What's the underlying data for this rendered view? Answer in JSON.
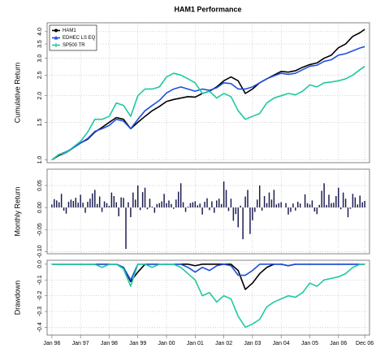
{
  "chart_data": [
    {
      "type": "line",
      "title": "HAM1 Performance",
      "ylabel": "Cumulative Return",
      "log_y": true,
      "grid": true,
      "legend": "topleft",
      "x": [
        "1996-01",
        "1996-04",
        "1996-07",
        "1996-10",
        "1997-01",
        "1997-04",
        "1997-07",
        "1997-10",
        "1998-01",
        "1998-04",
        "1998-07",
        "1998-10",
        "1999-01",
        "1999-04",
        "1999-07",
        "1999-10",
        "2000-01",
        "2000-04",
        "2000-07",
        "2000-10",
        "2001-01",
        "2001-04",
        "2001-07",
        "2001-10",
        "2002-01",
        "2002-04",
        "2002-07",
        "2002-10",
        "2003-01",
        "2003-04",
        "2003-07",
        "2003-10",
        "2004-01",
        "2004-04",
        "2004-07",
        "2004-10",
        "2005-01",
        "2005-04",
        "2005-07",
        "2005-10",
        "2006-01",
        "2006-04",
        "2006-07",
        "2006-10",
        "2006-12"
      ],
      "xlim": [
        "1995-11",
        "2007-02"
      ],
      "ylim": [
        0.97,
        4.4
      ],
      "yticks": [
        {
          "value": 1,
          "label": "1.0"
        },
        1.5,
        {
          "value": 2,
          "label": "2.0"
        },
        2.5,
        {
          "value": 3,
          "label": "3.0"
        },
        3.5,
        {
          "value": 4,
          "label": "4.0"
        }
      ],
      "series": [
        {
          "name": "HAM1",
          "color": "#000000",
          "marker": "circle",
          "values": [
            1.0,
            1.05,
            1.08,
            1.14,
            1.2,
            1.25,
            1.35,
            1.42,
            1.5,
            1.58,
            1.55,
            1.4,
            1.5,
            1.6,
            1.7,
            1.78,
            1.88,
            1.92,
            1.95,
            1.98,
            1.97,
            2.05,
            2.1,
            2.2,
            2.35,
            2.45,
            2.35,
            2.05,
            2.15,
            2.3,
            2.4,
            2.5,
            2.6,
            2.58,
            2.62,
            2.72,
            2.8,
            2.85,
            3.0,
            3.1,
            3.36,
            3.5,
            3.8,
            3.95,
            4.1
          ]
        },
        {
          "name": "EDHEC LS EQ",
          "color": "#1f4fe0",
          "marker": "triangle",
          "values": [
            1.0,
            1.06,
            1.09,
            1.14,
            1.2,
            1.26,
            1.36,
            1.4,
            1.45,
            1.55,
            1.52,
            1.4,
            1.55,
            1.7,
            1.8,
            1.9,
            2.06,
            2.15,
            2.2,
            2.15,
            2.1,
            2.15,
            2.12,
            2.18,
            2.3,
            2.28,
            2.15,
            2.15,
            2.2,
            2.3,
            2.4,
            2.48,
            2.55,
            2.52,
            2.55,
            2.65,
            2.75,
            2.78,
            2.9,
            2.95,
            3.1,
            3.15,
            3.25,
            3.35,
            3.4
          ]
        },
        {
          "name": "SP500 TR",
          "color": "#1fc9a0",
          "marker": "plus",
          "values": [
            1.0,
            1.06,
            1.08,
            1.15,
            1.22,
            1.35,
            1.55,
            1.55,
            1.6,
            1.85,
            1.8,
            1.6,
            2.0,
            2.15,
            2.15,
            2.2,
            2.45,
            2.55,
            2.5,
            2.4,
            2.3,
            2.05,
            2.1,
            1.95,
            2.05,
            1.98,
            1.7,
            1.55,
            1.6,
            1.65,
            1.85,
            1.95,
            2.0,
            2.05,
            2.02,
            2.1,
            2.25,
            2.2,
            2.3,
            2.32,
            2.35,
            2.4,
            2.5,
            2.65,
            2.75
          ]
        }
      ]
    },
    {
      "type": "bar",
      "ylabel": "Monthly Return",
      "grid": true,
      "color": "#1a1a4e",
      "x": [
        "1996-01",
        "1996-02",
        "1996-03",
        "1996-04",
        "1996-05",
        "1996-06",
        "1996-07",
        "1996-08",
        "1996-09",
        "1996-10",
        "1996-11",
        "1996-12",
        "1997-01",
        "1997-02",
        "1997-03",
        "1997-04",
        "1997-05",
        "1997-06",
        "1997-07",
        "1997-08",
        "1997-09",
        "1997-10",
        "1997-11",
        "1997-12",
        "1998-01",
        "1998-02",
        "1998-03",
        "1998-04",
        "1998-05",
        "1998-06",
        "1998-07",
        "1998-08",
        "1998-09",
        "1998-10",
        "1998-11",
        "1998-12",
        "1999-01",
        "1999-02",
        "1999-03",
        "1999-04",
        "1999-05",
        "1999-06",
        "1999-07",
        "1999-08",
        "1999-09",
        "1999-10",
        "1999-11",
        "1999-12",
        "2000-01",
        "2000-02",
        "2000-03",
        "2000-04",
        "2000-05",
        "2000-06",
        "2000-07",
        "2000-08",
        "2000-09",
        "2000-10",
        "2000-11",
        "2000-12",
        "2001-01",
        "2001-02",
        "2001-03",
        "2001-04",
        "2001-05",
        "2001-06",
        "2001-07",
        "2001-08",
        "2001-09",
        "2001-10",
        "2001-11",
        "2001-12",
        "2002-01",
        "2002-02",
        "2002-03",
        "2002-04",
        "2002-05",
        "2002-06",
        "2002-07",
        "2002-08",
        "2002-09",
        "2002-10",
        "2002-11",
        "2002-12",
        "2003-01",
        "2003-02",
        "2003-03",
        "2003-04",
        "2003-05",
        "2003-06",
        "2003-07",
        "2003-08",
        "2003-09",
        "2003-10",
        "2003-11",
        "2003-12",
        "2004-01",
        "2004-02",
        "2004-03",
        "2004-04",
        "2004-05",
        "2004-06",
        "2004-07",
        "2004-08",
        "2004-09",
        "2004-10",
        "2004-11",
        "2004-12",
        "2005-01",
        "2005-02",
        "2005-03",
        "2005-04",
        "2005-05",
        "2005-06",
        "2005-07",
        "2005-08",
        "2005-09",
        "2005-10",
        "2005-11",
        "2005-12",
        "2006-01",
        "2006-02",
        "2006-03",
        "2006-04",
        "2006-05",
        "2006-06",
        "2006-07",
        "2006-08",
        "2006-09",
        "2006-10",
        "2006-11",
        "2006-12"
      ],
      "xlim": [
        "1995-11",
        "2007-02"
      ],
      "ylim": [
        -0.105,
        0.087
      ],
      "yticks": [
        0.05,
        {
          "value": 0,
          "label": "0.00"
        },
        {
          "value": -0.05,
          "label": "-0.05"
        },
        {
          "value": -0.1,
          "label": "-0.10"
        }
      ],
      "values": [
        0.007,
        0.019,
        0.016,
        0.012,
        0.031,
        -0.007,
        -0.014,
        0.013,
        0.018,
        0.015,
        0.022,
        0.011,
        0.029,
        0.011,
        -0.012,
        0.013,
        0.02,
        0.032,
        0.04,
        0.008,
        0.025,
        -0.01,
        0.014,
        0.01,
        0.004,
        0.034,
        0.026,
        0.012,
        -0.02,
        0.023,
        0.022,
        -0.094,
        0.012,
        -0.022,
        0.034,
        0.018,
        0.05,
        -0.006,
        0.035,
        0.045,
        -0.004,
        0.02,
        0.002,
        -0.012,
        0.008,
        0.01,
        0.014,
        0.031,
        0.01,
        0.016,
        0.008,
        -0.003,
        0.018,
        0.036,
        0.055,
        0.012,
        -0.01,
        0.002,
        0.01,
        0.012,
        0.014,
        0.005,
        0.009,
        -0.016,
        0.013,
        0.021,
        -0.006,
        0.014,
        -0.012,
        0.016,
        0.02,
        0.008,
        0.059,
        0.04,
        -0.008,
        0.02,
        -0.03,
        -0.015,
        -0.045,
        0.004,
        -0.072,
        0.025,
        0.04,
        -0.06,
        -0.029,
        -0.01,
        0.018,
        0.05,
        -0.007,
        0.026,
        0.01,
        0.034,
        0.018,
        0.04,
        0.007,
        0.01,
        0.012,
        0.0,
        0.01,
        -0.016,
        -0.01,
        0.009,
        -0.007,
        0.013,
        0.009,
        0.0,
        0.03,
        0.01,
        0.007,
        0.016,
        -0.009,
        -0.015,
        0.006,
        0.038,
        0.055,
        0.006,
        0.029,
        0.01,
        0.011,
        0.026,
        0.045,
        -0.004,
        0.034,
        0.02,
        -0.022,
        -0.003,
        0.031,
        0.023,
        0.007,
        0.027,
        0.012,
        0.015
      ]
    },
    {
      "type": "line",
      "ylabel": "Drawdown",
      "grid": true,
      "x": [
        "1996-01",
        "1996-04",
        "1996-07",
        "1996-10",
        "1997-01",
        "1997-04",
        "1997-07",
        "1997-10",
        "1998-01",
        "1998-04",
        "1998-07",
        "1998-10",
        "1999-01",
        "1999-04",
        "1999-07",
        "1999-10",
        "2000-01",
        "2000-04",
        "2000-07",
        "2000-10",
        "2001-01",
        "2001-04",
        "2001-07",
        "2001-10",
        "2002-01",
        "2002-04",
        "2002-07",
        "2002-10",
        "2003-01",
        "2003-04",
        "2003-07",
        "2003-10",
        "2004-01",
        "2004-04",
        "2004-07",
        "2004-10",
        "2005-01",
        "2005-04",
        "2005-07",
        "2005-10",
        "2006-01",
        "2006-04",
        "2006-07",
        "2006-10",
        "2006-12"
      ],
      "xlim": [
        "1995-11",
        "2007-02"
      ],
      "ylim": [
        -0.45,
        0.025
      ],
      "yticks": [
        {
          "value": 0,
          "label": "0.0"
        },
        -0.1,
        -0.2,
        -0.3,
        -0.4
      ],
      "xticks": [
        {
          "value": "1996-01",
          "label": "Jan 96"
        },
        {
          "value": "1997-01",
          "label": "Jan 97"
        },
        {
          "value": "1998-01",
          "label": "Jan 98"
        },
        {
          "value": "1999-01",
          "label": "Jan 99"
        },
        {
          "value": "2000-01",
          "label": "Jan 00"
        },
        {
          "value": "2001-01",
          "label": "Jan 01"
        },
        {
          "value": "2002-01",
          "label": "Jan 02"
        },
        {
          "value": "2003-01",
          "label": "Jan 03"
        },
        {
          "value": "2004-01",
          "label": "Jan 04"
        },
        {
          "value": "2005-01",
          "label": "Jan 05"
        },
        {
          "value": "2006-01",
          "label": "Jan 06"
        },
        {
          "value": "2006-12",
          "label": "Dec 06"
        }
      ],
      "series": [
        {
          "name": "HAM1",
          "color": "#000000",
          "values": [
            0,
            0,
            0,
            0,
            0,
            0,
            0,
            0,
            0,
            0,
            -0.02,
            -0.11,
            -0.05,
            0,
            0,
            0,
            0,
            0,
            0,
            0,
            -0.01,
            0,
            0,
            0,
            0,
            0,
            -0.04,
            -0.16,
            -0.12,
            -0.06,
            -0.02,
            0,
            0,
            -0.01,
            0,
            0,
            0,
            0,
            0,
            0,
            0,
            0,
            0,
            0,
            0
          ]
        },
        {
          "name": "EDHEC LS EQ",
          "color": "#1f4fe0",
          "values": [
            0,
            0,
            0,
            0,
            0,
            0,
            0,
            0,
            0,
            0,
            -0.02,
            -0.1,
            0,
            0,
            0,
            0,
            0,
            0,
            0,
            -0.02,
            -0.05,
            -0.02,
            -0.04,
            -0.01,
            0,
            -0.01,
            -0.07,
            -0.07,
            -0.04,
            0,
            0,
            0,
            0,
            -0.01,
            0,
            0,
            0,
            0,
            0,
            0,
            0,
            0,
            0,
            0,
            0
          ]
        },
        {
          "name": "SP500 TR",
          "color": "#1fc9a0",
          "values": [
            0,
            0,
            0,
            0,
            0,
            0,
            0,
            -0.02,
            0,
            0,
            -0.03,
            -0.14,
            0,
            0,
            -0.02,
            0,
            0,
            0,
            -0.02,
            -0.06,
            -0.1,
            -0.2,
            -0.18,
            -0.24,
            -0.2,
            -0.22,
            -0.33,
            -0.4,
            -0.38,
            -0.35,
            -0.27,
            -0.24,
            -0.22,
            -0.2,
            -0.21,
            -0.18,
            -0.12,
            -0.14,
            -0.1,
            -0.09,
            -0.08,
            -0.06,
            -0.02,
            0,
            0
          ]
        }
      ]
    }
  ]
}
